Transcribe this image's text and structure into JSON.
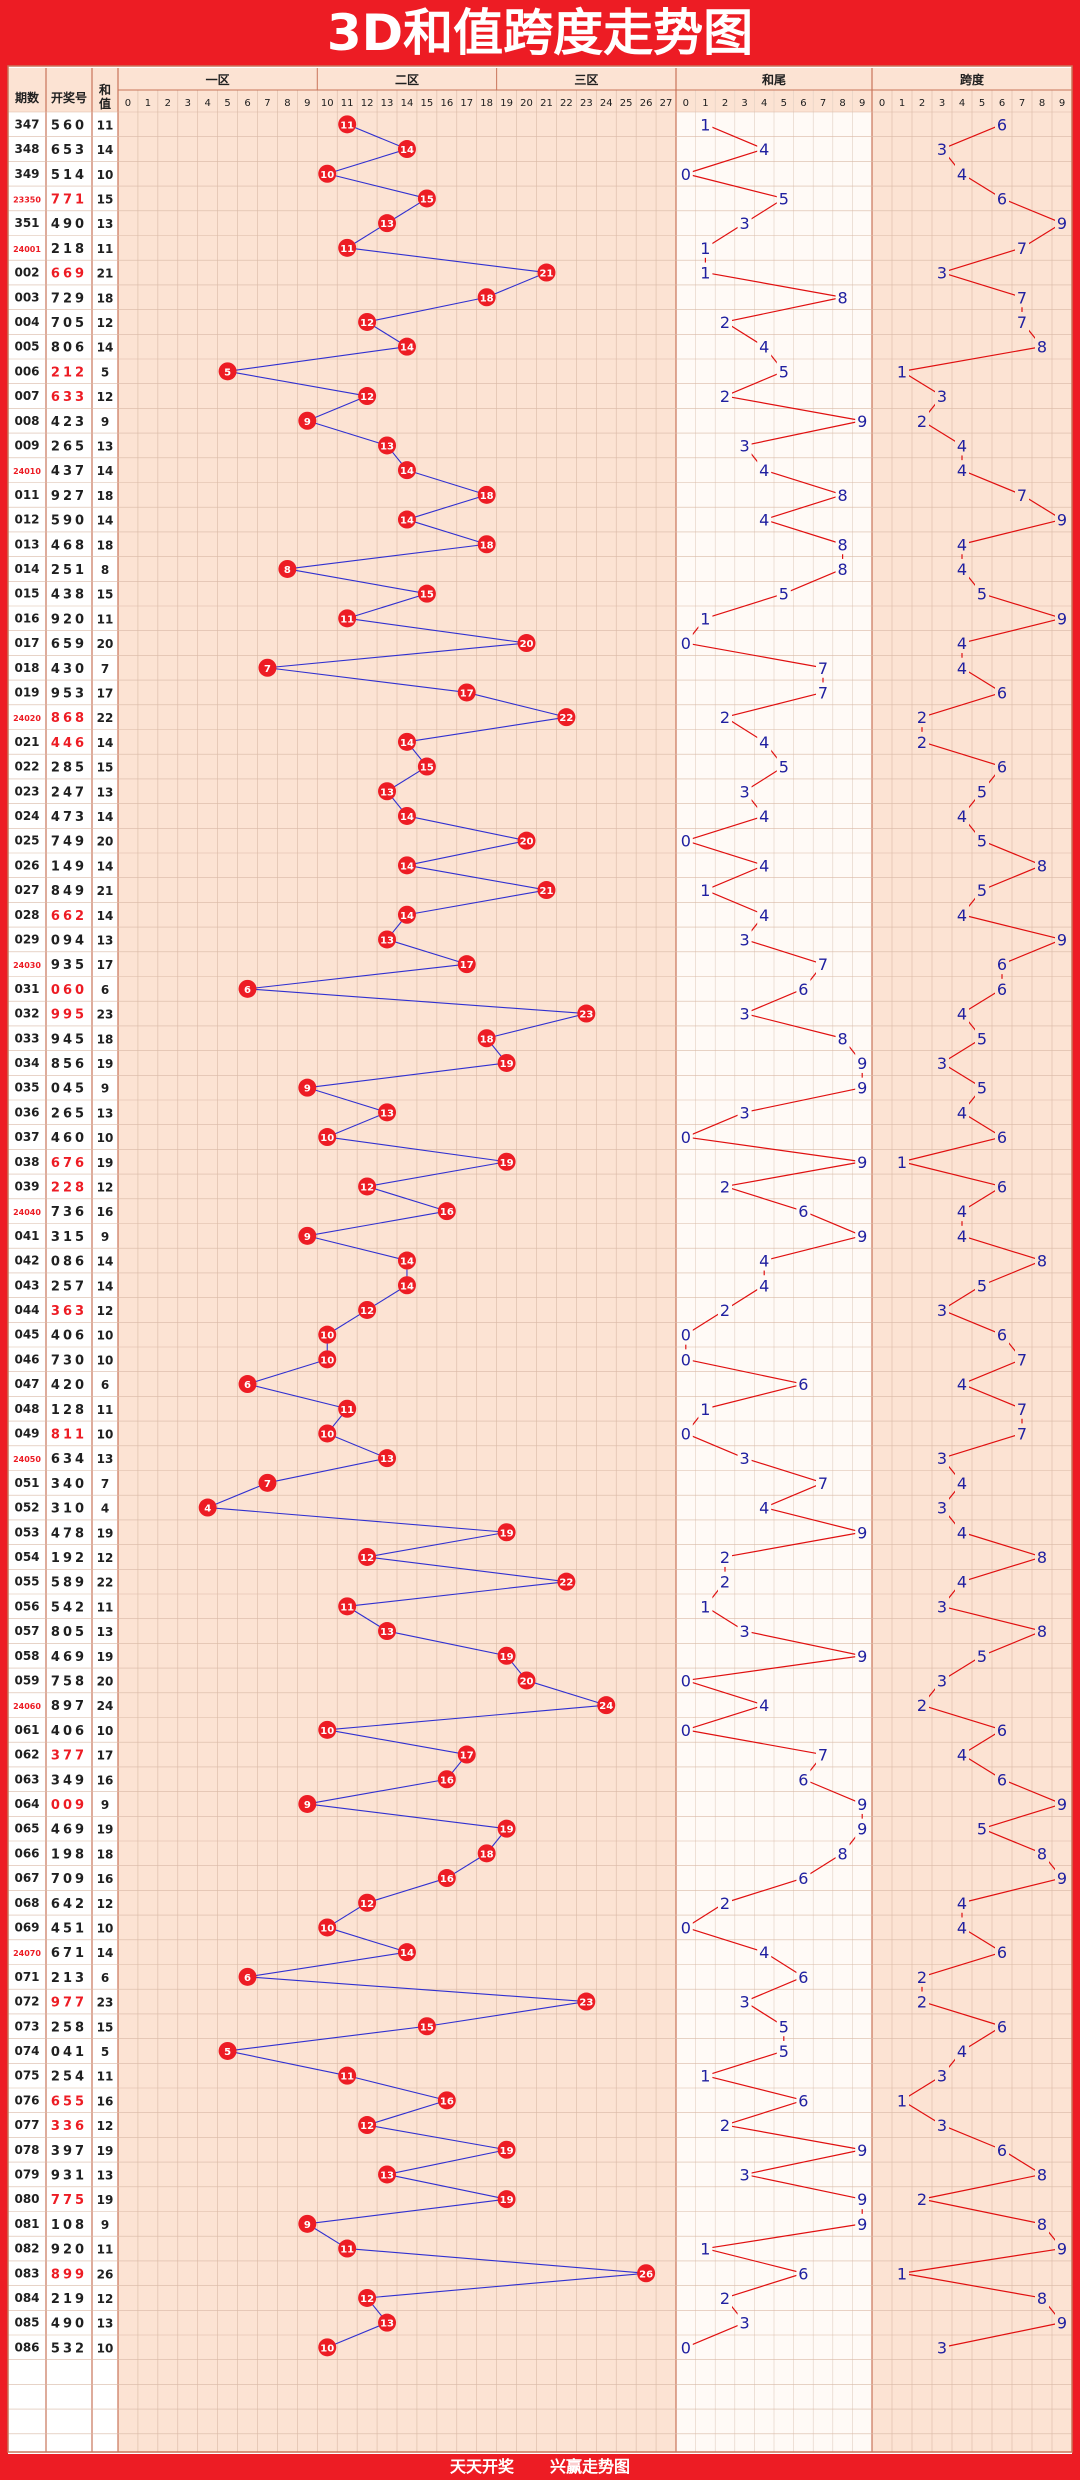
{
  "title": "3D和值跨度走势图",
  "footer": {
    "left": "天天开奖",
    "right": "兴赢走势图"
  },
  "headers": {
    "period": "期数",
    "draw": "开奖号",
    "sum": "和值",
    "zone1": "一区",
    "zone2": "二区",
    "zone3": "三区",
    "tail": "和尾",
    "span": "跨度"
  },
  "colors": {
    "brand_red": "#ed1c24",
    "grid_bg": "#fce3d3",
    "sum_line": "#3030d0",
    "tail_line": "#e01010",
    "digit_blue": "#2020a0"
  },
  "chart_data": {
    "type": "line",
    "title": "3D和值跨度走势图",
    "sum_range": [
      0,
      27
    ],
    "tail_range": [
      0,
      9
    ],
    "span_range": [
      0,
      9
    ],
    "rows": [
      [
        "347",
        "560",
        11,
        1,
        6
      ],
      [
        "348",
        "653",
        14,
        4,
        3
      ],
      [
        "349",
        "514",
        10,
        0,
        4
      ],
      [
        "23350",
        "771",
        15,
        5,
        6
      ],
      [
        "351",
        "490",
        13,
        3,
        9
      ],
      [
        "24001",
        "218",
        11,
        1,
        7
      ],
      [
        "002",
        "669",
        21,
        1,
        3
      ],
      [
        "003",
        "729",
        18,
        8,
        7
      ],
      [
        "004",
        "705",
        12,
        2,
        7
      ],
      [
        "005",
        "806",
        14,
        4,
        8
      ],
      [
        "006",
        "212",
        5,
        5,
        1
      ],
      [
        "007",
        "633",
        12,
        2,
        3
      ],
      [
        "008",
        "423",
        9,
        9,
        2
      ],
      [
        "009",
        "265",
        13,
        3,
        4
      ],
      [
        "24010",
        "437",
        14,
        4,
        4
      ],
      [
        "011",
        "927",
        18,
        8,
        7
      ],
      [
        "012",
        "590",
        14,
        4,
        9
      ],
      [
        "013",
        "468",
        18,
        8,
        4
      ],
      [
        "014",
        "251",
        8,
        8,
        4
      ],
      [
        "015",
        "438",
        15,
        5,
        5
      ],
      [
        "016",
        "920",
        11,
        1,
        9
      ],
      [
        "017",
        "659",
        20,
        0,
        4
      ],
      [
        "018",
        "430",
        7,
        7,
        4
      ],
      [
        "019",
        "953",
        17,
        7,
        6
      ],
      [
        "24020",
        "868",
        22,
        2,
        2
      ],
      [
        "021",
        "446",
        14,
        4,
        2
      ],
      [
        "022",
        "285",
        15,
        5,
        6
      ],
      [
        "023",
        "247",
        13,
        3,
        5
      ],
      [
        "024",
        "473",
        14,
        4,
        4
      ],
      [
        "025",
        "749",
        20,
        0,
        5
      ],
      [
        "026",
        "149",
        14,
        4,
        8
      ],
      [
        "027",
        "849",
        21,
        1,
        5
      ],
      [
        "028",
        "662",
        14,
        4,
        4
      ],
      [
        "029",
        "094",
        13,
        3,
        9
      ],
      [
        "24030",
        "935",
        17,
        7,
        6
      ],
      [
        "031",
        "060",
        6,
        6,
        6
      ],
      [
        "032",
        "995",
        23,
        3,
        4
      ],
      [
        "033",
        "945",
        18,
        8,
        5
      ],
      [
        "034",
        "856",
        19,
        9,
        3
      ],
      [
        "035",
        "045",
        9,
        9,
        5
      ],
      [
        "036",
        "265",
        13,
        3,
        4
      ],
      [
        "037",
        "460",
        10,
        0,
        6
      ],
      [
        "038",
        "676",
        19,
        9,
        1
      ],
      [
        "039",
        "228",
        12,
        2,
        6
      ],
      [
        "24040",
        "736",
        16,
        6,
        4
      ],
      [
        "041",
        "315",
        9,
        9,
        4
      ],
      [
        "042",
        "086",
        14,
        4,
        8
      ],
      [
        "043",
        "257",
        14,
        4,
        5
      ],
      [
        "044",
        "363",
        12,
        2,
        3
      ],
      [
        "045",
        "406",
        10,
        0,
        6
      ],
      [
        "046",
        "730",
        10,
        0,
        7
      ],
      [
        "047",
        "420",
        6,
        6,
        4
      ],
      [
        "048",
        "128",
        11,
        1,
        7
      ],
      [
        "049",
        "811",
        10,
        0,
        7
      ],
      [
        "24050",
        "634",
        13,
        3,
        3
      ],
      [
        "051",
        "340",
        7,
        7,
        4
      ],
      [
        "052",
        "310",
        4,
        4,
        3
      ],
      [
        "053",
        "478",
        19,
        9,
        4
      ],
      [
        "054",
        "192",
        12,
        2,
        8
      ],
      [
        "055",
        "589",
        22,
        2,
        4
      ],
      [
        "056",
        "542",
        11,
        1,
        3
      ],
      [
        "057",
        "805",
        13,
        3,
        8
      ],
      [
        "058",
        "469",
        19,
        9,
        5
      ],
      [
        "059",
        "758",
        20,
        0,
        3
      ],
      [
        "24060",
        "897",
        24,
        4,
        2
      ],
      [
        "061",
        "406",
        10,
        0,
        6
      ],
      [
        "062",
        "377",
        17,
        7,
        4
      ],
      [
        "063",
        "349",
        16,
        6,
        6
      ],
      [
        "064",
        "009",
        9,
        9,
        9
      ],
      [
        "065",
        "469",
        19,
        9,
        5
      ],
      [
        "066",
        "198",
        18,
        8,
        8
      ],
      [
        "067",
        "709",
        16,
        6,
        9
      ],
      [
        "068",
        "642",
        12,
        2,
        4
      ],
      [
        "069",
        "451",
        10,
        0,
        4
      ],
      [
        "24070",
        "671",
        14,
        4,
        6
      ],
      [
        "071",
        "213",
        6,
        6,
        2
      ],
      [
        "072",
        "977",
        23,
        3,
        2
      ],
      [
        "073",
        "258",
        15,
        5,
        6
      ],
      [
        "074",
        "041",
        5,
        5,
        4
      ],
      [
        "075",
        "254",
        11,
        1,
        3
      ],
      [
        "076",
        "655",
        16,
        6,
        1
      ],
      [
        "077",
        "336",
        12,
        2,
        3
      ],
      [
        "078",
        "397",
        19,
        9,
        6
      ],
      [
        "079",
        "931",
        13,
        3,
        8
      ],
      [
        "080",
        "775",
        19,
        9,
        2
      ],
      [
        "081",
        "108",
        9,
        9,
        8
      ],
      [
        "082",
        "920",
        11,
        1,
        9
      ],
      [
        "083",
        "899",
        26,
        6,
        1
      ],
      [
        "084",
        "219",
        12,
        2,
        8
      ],
      [
        "085",
        "490",
        13,
        3,
        9
      ],
      [
        "086",
        "532",
        10,
        0,
        3
      ]
    ]
  }
}
